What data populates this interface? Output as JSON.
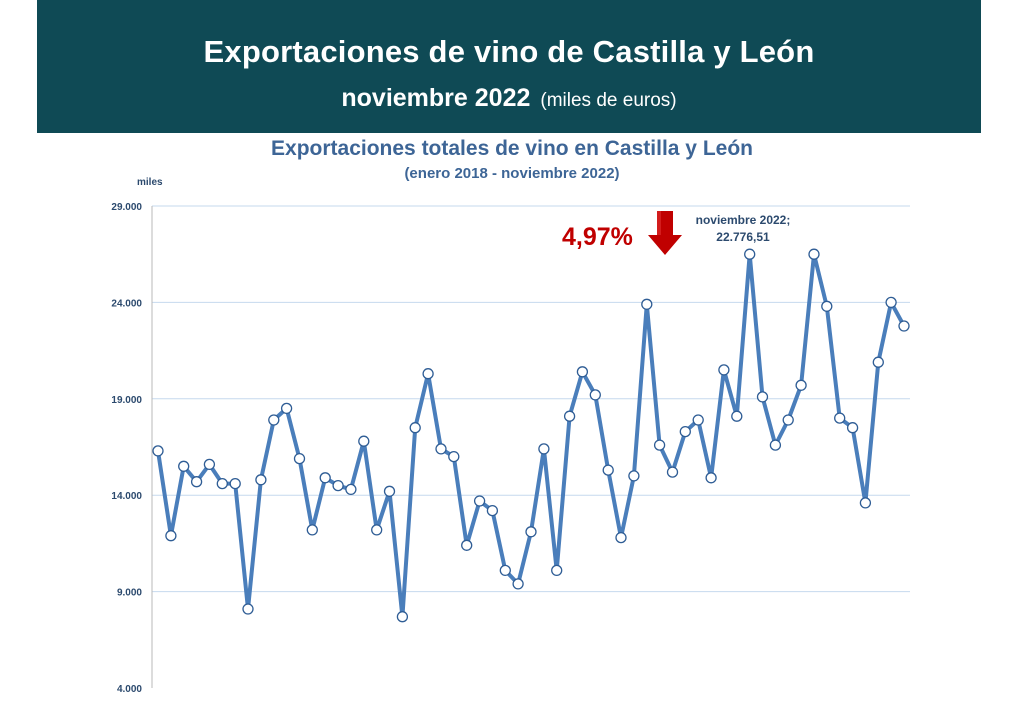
{
  "header": {
    "title": "Exportaciones de vino de Castilla y León",
    "period": "noviembre 2022",
    "unit_note": "(miles de euros)"
  },
  "annotation": {
    "percent_change": "4,97%",
    "direction": "down",
    "label_line1": "noviembre 2022;",
    "label_line2": "22.776,51"
  },
  "colors": {
    "banner": "#0f4a55",
    "line": "#4a7ebb",
    "title": "#3d6596",
    "accent_red": "#c00000",
    "grid": "#c6d9ee"
  },
  "chart_data": {
    "type": "line",
    "title": "Exportaciones totales de vino en Castilla y León",
    "subtitle": "(enero 2018 - noviembre 2022)",
    "ylabel": "miles",
    "xlabel": "",
    "ylim": [
      4000,
      29000
    ],
    "yticks": [
      4000,
      9000,
      14000,
      19000,
      24000,
      29000
    ],
    "ytick_labels": [
      "4.000",
      "9.000",
      "14.000",
      "19.000",
      "24.000",
      "29.000"
    ],
    "x_range": "enero 2018 - noviembre 2022",
    "series": [
      {
        "name": "Exportaciones totales",
        "values": [
          16300,
          11900,
          15500,
          14700,
          15600,
          14600,
          14600,
          8100,
          14800,
          17900,
          18500,
          15900,
          12200,
          14900,
          14500,
          14300,
          16800,
          12200,
          14200,
          7700,
          17500,
          20300,
          16400,
          16000,
          11400,
          13700,
          13200,
          10100,
          9400,
          12100,
          16400,
          10100,
          18100,
          20400,
          19200,
          15300,
          11800,
          15000,
          23900,
          16600,
          15200,
          17300,
          17900,
          14900,
          20500,
          18100,
          26500,
          19100,
          16600,
          17900,
          19700,
          26500,
          23800,
          18000,
          17500,
          13600,
          20900,
          24000,
          22777
        ]
      }
    ]
  }
}
